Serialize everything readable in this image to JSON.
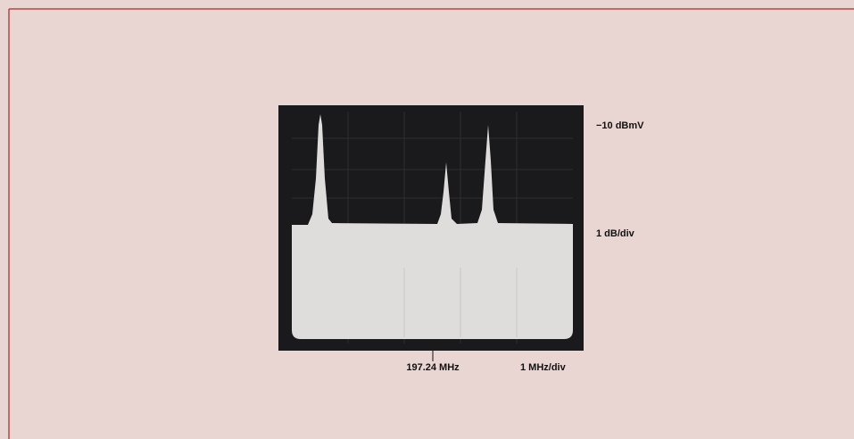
{
  "labels": {
    "reference_level": "−10 dBmV",
    "vertical_scale": "1 dB/div",
    "center_frequency": "197.24 MHz",
    "horizontal_scale": "1 MHz/div"
  }
}
